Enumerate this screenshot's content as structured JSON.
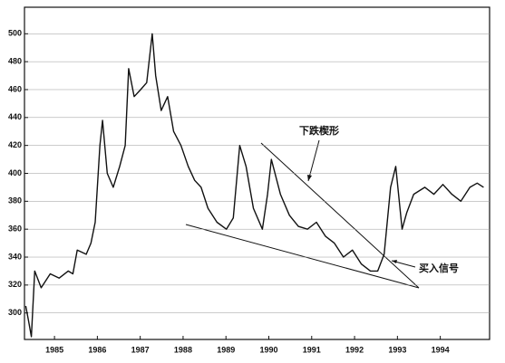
{
  "chart_data": {
    "type": "line",
    "annotations": [
      "下跌楔形",
      "买入信号"
    ],
    "x": [
      1984.83,
      1984.89,
      1984.96,
      1985.04,
      1985.19,
      1985.4,
      1985.61,
      1985.82,
      1985.93,
      1986.03,
      1986.24,
      1986.35,
      1986.45,
      1986.56,
      1986.62,
      1986.73,
      1986.87,
      1987.02,
      1987.15,
      1987.23,
      1987.36,
      1987.51,
      1987.65,
      1987.78,
      1987.86,
      1987.99,
      1988.14,
      1988.28,
      1988.45,
      1988.62,
      1988.77,
      1988.92,
      1989.08,
      1989.29,
      1989.51,
      1989.67,
      1989.82,
      1989.97,
      1990.14,
      1990.35,
      1990.47,
      1990.56,
      1990.77,
      1990.98,
      1991.19,
      1991.4,
      1991.61,
      1991.82,
      1992.03,
      1992.24,
      1992.45,
      1992.66,
      1992.87,
      1993.04,
      1993.19,
      1993.34,
      1993.46,
      1993.61,
      1993.72,
      1993.88,
      1994.14,
      1994.35,
      1994.56,
      1994.77,
      1994.98,
      1995.19,
      1995.36,
      1995.51
    ],
    "values": [
      305,
      295,
      283,
      330,
      318,
      328,
      325,
      330,
      328,
      345,
      342,
      350,
      365,
      420,
      438,
      400,
      390,
      405,
      420,
      475,
      455,
      460,
      465,
      500,
      470,
      445,
      455,
      430,
      420,
      405,
      395,
      390,
      375,
      365,
      360,
      368,
      420,
      405,
      375,
      360,
      385,
      410,
      385,
      370,
      362,
      360,
      365,
      355,
      350,
      340,
      345,
      335,
      330,
      330,
      342,
      390,
      405,
      360,
      372,
      385,
      390,
      385,
      392,
      385,
      380,
      390,
      393,
      390
    ],
    "color": "#111111",
    "xlim": [
      1984.8,
      1995.65
    ],
    "xticks": [
      {
        "value": 1985.5,
        "label": "1985"
      },
      {
        "value": 1986.5,
        "label": "1986"
      },
      {
        "value": 1987.5,
        "label": "1987"
      },
      {
        "value": 1988.5,
        "label": "1988"
      },
      {
        "value": 1989.5,
        "label": "1989"
      },
      {
        "value": 1990.5,
        "label": "1990"
      },
      {
        "value": 1991.5,
        "label": "1991"
      },
      {
        "value": 1992.5,
        "label": "1992"
      },
      {
        "value": 1993.5,
        "label": "1993"
      },
      {
        "value": 1994.5,
        "label": "1994"
      }
    ],
    "ylim": [
      281,
      519
    ],
    "yticks": [
      300,
      320,
      340,
      360,
      380,
      400,
      420,
      440,
      460,
      480,
      500
    ],
    "grid": true
  }
}
